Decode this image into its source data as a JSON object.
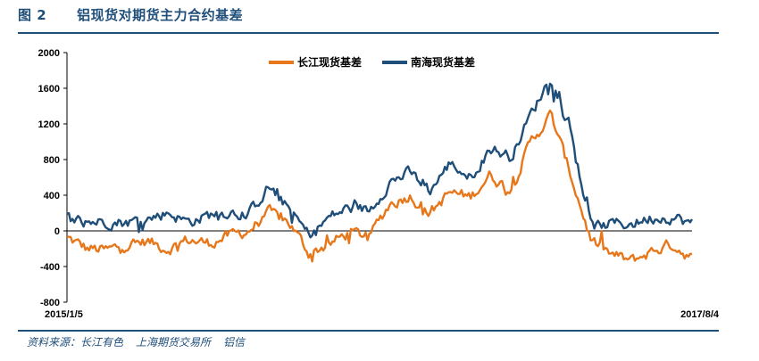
{
  "header": {
    "fig_num": "图 2",
    "title": "铝现货对期货主力合约基差"
  },
  "source": {
    "label": "资料来源：长江有色",
    "items": [
      "上海期货交易所",
      "铝信"
    ]
  },
  "colors": {
    "changjiang": "#e6771b",
    "nanhai": "#1f4e79",
    "axis": "#000000"
  },
  "chart_data": {
    "type": "line",
    "title": "铝现货对期货主力合约基差",
    "xlabel": "",
    "ylabel": "",
    "ylim": [
      -800,
      2000
    ],
    "yticks": [
      2000,
      1600,
      1200,
      800,
      400,
      0,
      -400,
      -800
    ],
    "xlim": [
      "2015/1/5",
      "2017/8/4"
    ],
    "x_tick_labels": [
      "2015/1/5",
      "2017/8/4"
    ],
    "legend_position": "top-center",
    "grid": false,
    "x": [
      "2015-01",
      "2015-02",
      "2015-03",
      "2015-04",
      "2015-05",
      "2015-06",
      "2015-07",
      "2015-08",
      "2015-09",
      "2015-10",
      "2015-11",
      "2015-12",
      "2016-01",
      "2016-02",
      "2016-03",
      "2016-04",
      "2016-05",
      "2016-06",
      "2016-07",
      "2016-08",
      "2016-09",
      "2016-10",
      "2016-11",
      "2016-12",
      "2017-01",
      "2017-02",
      "2017-03",
      "2017-04",
      "2017-05",
      "2017-06",
      "2017-07",
      "2017-08"
    ],
    "series": [
      {
        "name": "长江现货基差",
        "values": [
          -80,
          -200,
          -220,
          -150,
          -120,
          -200,
          -100,
          -140,
          -60,
          0,
          200,
          100,
          -250,
          -150,
          -20,
          -60,
          300,
          400,
          200,
          430,
          380,
          630,
          450,
          1000,
          1300,
          620,
          -110,
          -270,
          -340,
          -230,
          -150,
          -300
        ]
      },
      {
        "name": "南海现货基差",
        "values": [
          150,
          100,
          110,
          100,
          130,
          210,
          100,
          170,
          220,
          180,
          500,
          250,
          -50,
          150,
          260,
          230,
          550,
          650,
          450,
          760,
          600,
          930,
          830,
          1300,
          1740,
          1100,
          30,
          80,
          80,
          150,
          160,
          80
        ]
      }
    ]
  }
}
